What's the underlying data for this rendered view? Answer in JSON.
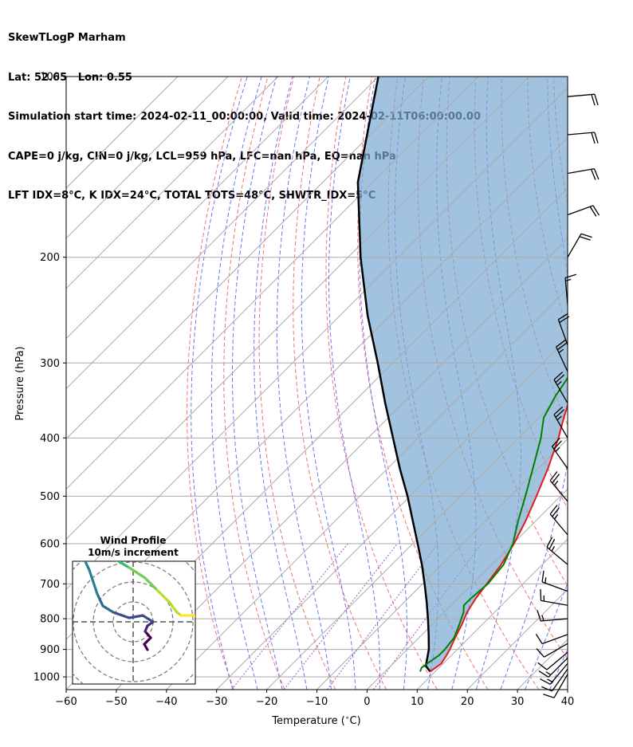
{
  "header": {
    "line1": "SkewTLogP Marham",
    "line2": "Lat: 52.65   Lon: 0.55",
    "line3": "Simulation start time: 2024-02-11_00:00:00, Valid time: 2024-02-11T06:00:00.00",
    "line4": "CAPE=0 j/kg, CIN=0 j/kg, LCL=959 hPa, LFC=nan hPa, EQ=nan hPa",
    "line5": "LFT IDX=8$^\\circ$C, K IDX=24$^\\circ$C, TOTAL TOTS=48$^\\circ$C, SHWTR_IDX=5$^\\circ$C"
  },
  "chart_data": {
    "type": "line",
    "title": "SkewTLogP Marham",
    "xlabel": "Temperature ($^\\circ$C)",
    "ylabel": "Pressure (hPa)",
    "xlim": [
      -60,
      40
    ],
    "ylim": [
      1050,
      100
    ],
    "yscale": "log",
    "grid": true,
    "xticks": [
      -60,
      -50,
      -40,
      -30,
      -20,
      -10,
      0,
      10,
      20,
      30,
      40
    ],
    "yticks": [
      1000,
      900,
      800,
      700,
      600,
      500,
      400,
      300,
      200,
      100
    ],
    "colors": {
      "temperature": "#e41a1c",
      "dewpoint": "#008000",
      "parcel": "#000000",
      "cin_cape_fill": "#7aa9d1",
      "dry_adiabat": "#f06464",
      "moist_adiabat": "#4f5ff0",
      "mixing_ratio": "#9940c4",
      "isotherm": "#aaaaaa"
    },
    "series": [
      {
        "name": "temperature",
        "pressure": [
          980,
          965,
          950,
          920,
          900,
          860,
          820,
          780,
          740,
          700,
          650,
          600,
          550,
          500,
          450,
          400,
          370,
          340,
          320,
          295,
          280,
          260,
          230,
          200,
          180,
          160,
          140,
          120,
          100
        ],
        "values": [
          9,
          9.3,
          9.6,
          9,
          8.5,
          7.2,
          6,
          4.5,
          3.5,
          2.8,
          1.8,
          0.2,
          -2,
          -4.8,
          -8,
          -12,
          -15,
          -18,
          -20.5,
          -21.5,
          -21.5,
          -22,
          -24,
          -26,
          -28,
          -31,
          -34,
          -38,
          -43
        ]
      },
      {
        "name": "dewpoint",
        "pressure": [
          980,
          965,
          950,
          920,
          900,
          860,
          820,
          780,
          760,
          740,
          700,
          650,
          600,
          550,
          500,
          450,
          400,
          370,
          340,
          320,
          300,
          290,
          270,
          250,
          230,
          200,
          180,
          160,
          140,
          120,
          100
        ],
        "values": [
          7,
          6.5,
          6.8,
          7.5,
          7.5,
          7,
          5.5,
          3.8,
          2.5,
          2.5,
          3,
          2.3,
          0,
          -3.5,
          -7,
          -11,
          -15.5,
          -19,
          -21,
          -22,
          -23.5,
          -24.5,
          -25,
          -28,
          -32,
          -37,
          -43,
          -48,
          -53,
          -60,
          -68
        ]
      },
      {
        "name": "parcel",
        "pressure": [
          980,
          959,
          900,
          850,
          800,
          750,
          700,
          650,
          600,
          550,
          500,
          450,
          400,
          350,
          300,
          250,
          200,
          150,
          100
        ],
        "values": [
          9,
          7,
          4.3,
          1.3,
          -2,
          -5.6,
          -9.6,
          -14,
          -19,
          -24.5,
          -30.5,
          -37.5,
          -45,
          -53.5,
          -63,
          -74.5,
          -87.5,
          -103,
          -120
        ]
      }
    ],
    "hodograph": {
      "title": "Wind Profile",
      "subtitle": "10m/s increment",
      "rings": 4,
      "u": [
        1.8,
        1.4,
        2.2,
        1.5,
        1.8,
        2.5,
        1.2,
        -0.5,
        -2.5,
        -3.8,
        -4.5,
        -5,
        -5.5,
        -6.2,
        -7,
        -6,
        -4.5,
        -2.5,
        -0.5,
        1.5,
        3,
        4.5,
        5.5,
        6,
        7.5,
        9
      ],
      "v": [
        -3.5,
        -2.8,
        -2,
        -1.2,
        -0.5,
        0,
        0.8,
        0.5,
        1.2,
        2,
        3.5,
        5,
        6.5,
        8,
        9.8,
        10,
        9.3,
        8,
        6.8,
        5.5,
        4,
        2.5,
        1.2,
        0.8,
        0.8,
        0.3
      ]
    },
    "wind_barbs": [
      {
        "pressure": 990,
        "speed_kt": 10,
        "direction_deg": 210
      },
      {
        "pressure": 970,
        "speed_kt": 10,
        "direction_deg": 215
      },
      {
        "pressure": 950,
        "speed_kt": 15,
        "direction_deg": 220
      },
      {
        "pressure": 930,
        "speed_kt": 15,
        "direction_deg": 225
      },
      {
        "pressure": 910,
        "speed_kt": 10,
        "direction_deg": 230
      },
      {
        "pressure": 880,
        "speed_kt": 10,
        "direction_deg": 240
      },
      {
        "pressure": 850,
        "speed_kt": 10,
        "direction_deg": 250
      },
      {
        "pressure": 800,
        "speed_kt": 15,
        "direction_deg": 265
      },
      {
        "pressure": 760,
        "speed_kt": 15,
        "direction_deg": 280
      },
      {
        "pressure": 720,
        "speed_kt": 15,
        "direction_deg": 290
      },
      {
        "pressure": 650,
        "speed_kt": 25,
        "direction_deg": 310
      },
      {
        "pressure": 580,
        "speed_kt": 25,
        "direction_deg": 320
      },
      {
        "pressure": 510,
        "speed_kt": 25,
        "direction_deg": 320
      },
      {
        "pressure": 450,
        "speed_kt": 25,
        "direction_deg": 325
      },
      {
        "pressure": 400,
        "speed_kt": 25,
        "direction_deg": 330
      },
      {
        "pressure": 350,
        "speed_kt": 25,
        "direction_deg": 330
      },
      {
        "pressure": 310,
        "speed_kt": 25,
        "direction_deg": 335
      },
      {
        "pressure": 280,
        "speed_kt": 20,
        "direction_deg": 340
      },
      {
        "pressure": 240,
        "speed_kt": 15,
        "direction_deg": 355
      },
      {
        "pressure": 200,
        "speed_kt": 20,
        "direction_deg": 30
      },
      {
        "pressure": 170,
        "speed_kt": 20,
        "direction_deg": 70
      },
      {
        "pressure": 145,
        "speed_kt": 20,
        "direction_deg": 80
      },
      {
        "pressure": 125,
        "speed_kt": 20,
        "direction_deg": 85
      },
      {
        "pressure": 108,
        "speed_kt": 20,
        "direction_deg": 85
      }
    ]
  }
}
